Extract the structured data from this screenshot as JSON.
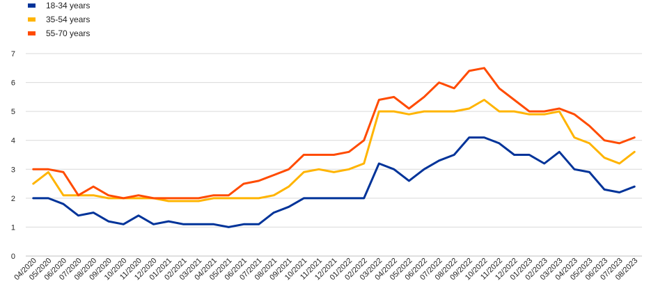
{
  "chart_data": {
    "type": "line",
    "title": "",
    "xlabel": "",
    "ylabel": "",
    "ylim": [
      0,
      7
    ],
    "yticks": [
      "0",
      "1",
      "2",
      "3",
      "4",
      "5",
      "6",
      "7"
    ],
    "grid": "horizontal",
    "legend_position": "top-left",
    "categories": [
      "04/2020",
      "05/2020",
      "06/2020",
      "07/2020",
      "08/2020",
      "09/2020",
      "10/2020",
      "11/2020",
      "12/2020",
      "01/2021",
      "02/2021",
      "03/2021",
      "04/2021",
      "05/2021",
      "06/2021",
      "07/2021",
      "08/2021",
      "09/2021",
      "10/2021",
      "11/2021",
      "12/2021",
      "01/2022",
      "02/2022",
      "03/2022",
      "04/2022",
      "05/2022",
      "06/2022",
      "07/2022",
      "08/2022",
      "09/2022",
      "10/2022",
      "11/2022",
      "12/2022",
      "01/2023",
      "02/2023",
      "03/2023",
      "04/2023",
      "05/2023",
      "06/2023",
      "07/2023",
      "08/2023"
    ],
    "series": [
      {
        "name": "18-34 years",
        "color": "#003399",
        "values": [
          2.0,
          2.0,
          1.8,
          1.4,
          1.5,
          1.2,
          1.1,
          1.4,
          1.1,
          1.2,
          1.1,
          1.1,
          1.1,
          1.0,
          1.1,
          1.1,
          1.5,
          1.7,
          2.0,
          2.0,
          2.0,
          2.0,
          2.0,
          3.2,
          3.0,
          2.6,
          3.0,
          3.3,
          3.5,
          4.1,
          4.1,
          3.9,
          3.5,
          3.5,
          3.2,
          3.6,
          3.0,
          2.9,
          2.3,
          2.2,
          2.4
        ]
      },
      {
        "name": "35-54 years",
        "color": "#FFB400",
        "values": [
          2.5,
          2.9,
          2.1,
          2.1,
          2.1,
          2.0,
          2.0,
          2.0,
          2.0,
          1.9,
          1.9,
          1.9,
          2.0,
          2.0,
          2.0,
          2.0,
          2.1,
          2.4,
          2.9,
          3.0,
          2.9,
          3.0,
          3.2,
          5.0,
          5.0,
          4.9,
          5.0,
          5.0,
          5.0,
          5.1,
          5.4,
          5.0,
          5.0,
          4.9,
          4.9,
          5.0,
          4.1,
          3.9,
          3.4,
          3.2,
          3.6
        ]
      },
      {
        "name": "55-70 years",
        "color": "#FF4B00",
        "values": [
          3.0,
          3.0,
          2.9,
          2.1,
          2.4,
          2.1,
          2.0,
          2.1,
          2.0,
          2.0,
          2.0,
          2.0,
          2.1,
          2.1,
          2.5,
          2.6,
          2.8,
          3.0,
          3.5,
          3.5,
          3.5,
          3.6,
          4.0,
          5.4,
          5.5,
          5.1,
          5.5,
          6.0,
          5.8,
          6.4,
          6.5,
          5.8,
          5.4,
          5.0,
          5.0,
          5.1,
          4.9,
          4.5,
          4.0,
          3.9,
          4.1
        ]
      }
    ]
  }
}
